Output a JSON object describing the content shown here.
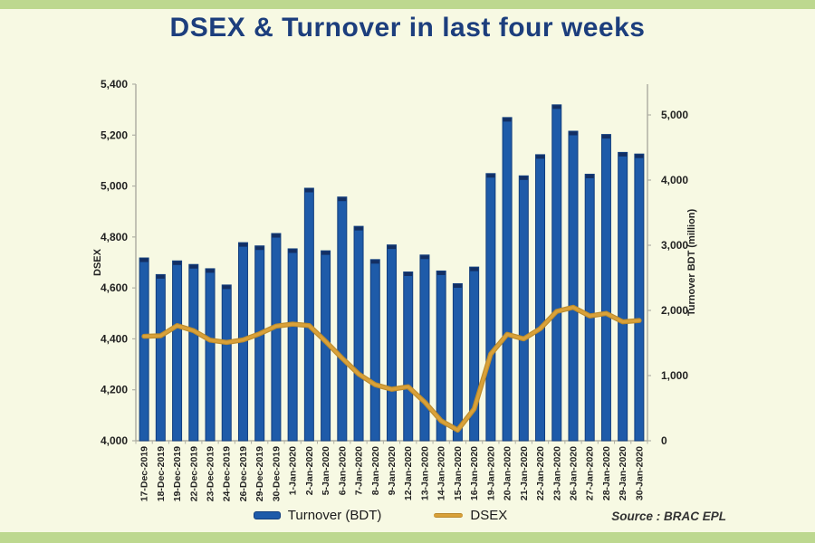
{
  "title": "DSEX & Turnover in last four weeks",
  "source": "Source : BRAC EPL",
  "legend": {
    "turnover_label": "Turnover (BDT)",
    "dsex_label": "DSEX"
  },
  "colors": {
    "background": "#f7f9e3",
    "border_strip_green": "#bdd88f",
    "title_blue": "#1c3e7d",
    "bar_blue": "#1e5ba9",
    "bar_edge_navy": "#123e7e",
    "bar_cap_navy": "#132f63",
    "line_gold": "#d9a139",
    "line_gold_dark": "#bd8c2c",
    "axis_gray": "#b0b0a5",
    "label_dark": "#222222"
  },
  "chart_data": {
    "type": "bar",
    "title": "DSEX & Turnover in last four weeks",
    "categories": [
      "17-Dec-2019",
      "18-Dec-2019",
      "19-Dec-2019",
      "22-Dec-2019",
      "23-Dec-2019",
      "24-Dec-2019",
      "26-Dec-2019",
      "29-Dec-2019",
      "30-Dec-2019",
      "1-Jan-2020",
      "2-Jan-2020",
      "5-Jan-2020",
      "6-Jan-2020",
      "7-Jan-2020",
      "8-Jan-2020",
      "9-Jan-2020",
      "12-Jan-2020",
      "13-Jan-2020",
      "14-Jan-2020",
      "15-Jan-2020",
      "16-Jan-2020",
      "19-Jan-2020",
      "20-Jan-2020",
      "21-Jan-2020",
      "22-Jan-2020",
      "23-Jan-2020",
      "26-Jan-2020",
      "27-Jan-2020",
      "28-Jan-2020",
      "29-Jan-2020",
      "30-Jan-2020"
    ],
    "series": [
      {
        "name": "Turnover (BDT)",
        "type": "bar",
        "axis": "right",
        "values": [
          2805,
          2550,
          2760,
          2705,
          2640,
          2390,
          3040,
          2990,
          3180,
          2945,
          3875,
          2915,
          3740,
          3290,
          2780,
          3005,
          2590,
          2850,
          2605,
          2410,
          2665,
          4100,
          4960,
          4065,
          4390,
          5155,
          4750,
          4090,
          4700,
          4425,
          4400
        ]
      },
      {
        "name": "DSEX",
        "type": "line",
        "axis": "left",
        "values": [
          4410,
          4412,
          4452,
          4432,
          4395,
          4386,
          4396,
          4420,
          4450,
          4458,
          4452,
          4390,
          4324,
          4262,
          4220,
          4202,
          4212,
          4152,
          4078,
          4042,
          4125,
          4340,
          4418,
          4400,
          4440,
          4508,
          4524,
          4490,
          4500,
          4467,
          4472
        ]
      }
    ],
    "axes": {
      "left": {
        "label": "DSEX",
        "min": 4000,
        "max": 5400,
        "step": 200,
        "tick_labels": [
          "4,000",
          "4,200",
          "4,400",
          "4,600",
          "4,800",
          "5,000",
          "5,200",
          "5,400"
        ]
      },
      "right": {
        "label": "Turnover  BDT (million)",
        "min": 0,
        "max": 5000,
        "step": 1000,
        "tick_labels": [
          "0",
          "1,000",
          "2,000",
          "3,000",
          "4,000",
          "5,000"
        ]
      }
    },
    "grid": false,
    "legend_position": "bottom"
  }
}
